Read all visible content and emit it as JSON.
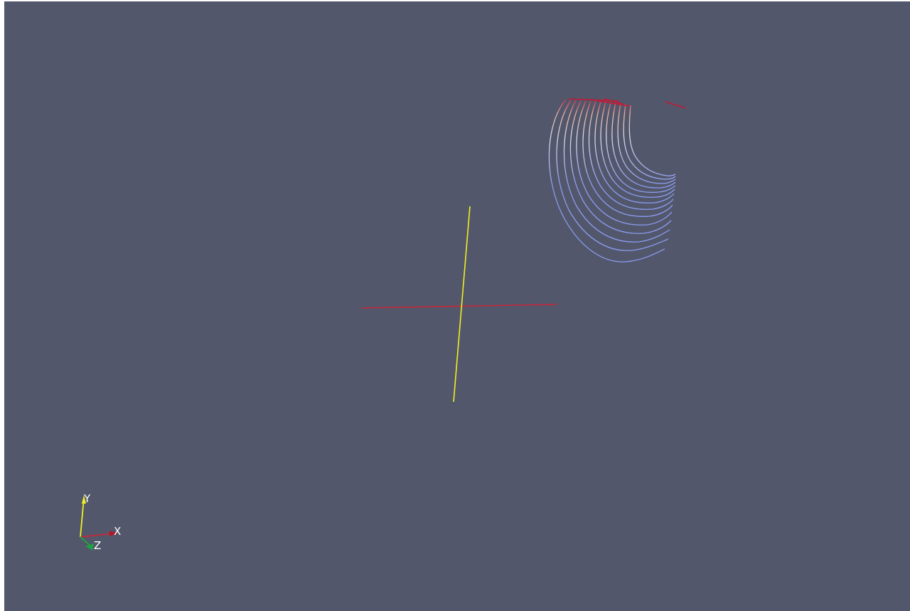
{
  "scene": {
    "background_color": "#52576b",
    "cross_horizontal_color": "#c8283c",
    "cross_vertical_color": "#f0f020",
    "streamline_start_color": "#c82846",
    "streamline_mid_color": "#e6c8c8",
    "streamline_end_color": "#6a80e8"
  },
  "orientation_axes": {
    "x_label": "X",
    "y_label": "Y",
    "z_label": "Z",
    "x_color": "#c82838",
    "y_color": "#f0f020",
    "z_color": "#20a040"
  }
}
